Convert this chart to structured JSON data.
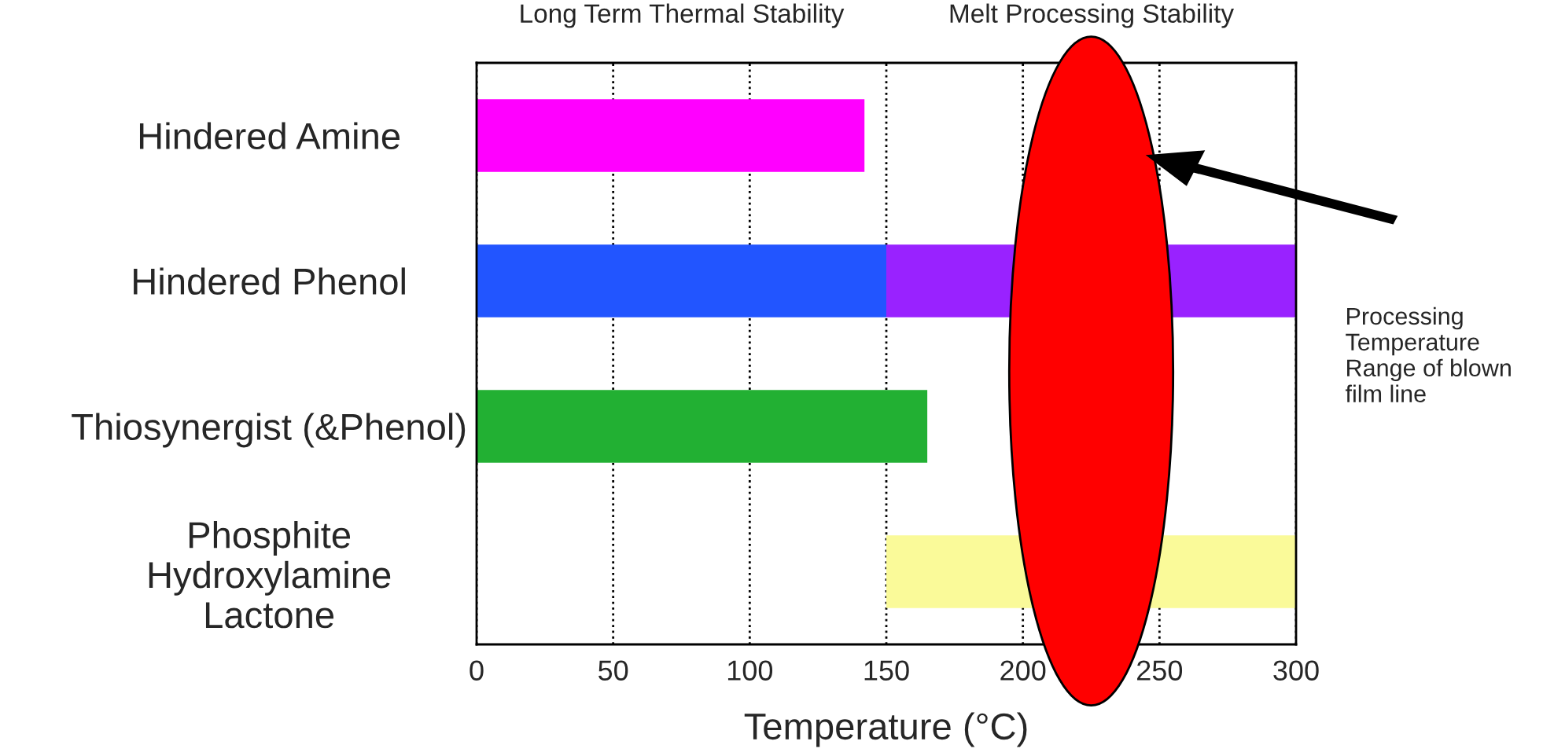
{
  "chart_data": {
    "type": "bar",
    "orientation": "horizontal",
    "xlabel": "Temperature (°C)",
    "categories": [
      "Hindered Amine",
      "Hindered Phenol",
      "Thiosynergist (&Phenol)",
      "Phosphite\nHydroxylamine\nLactone"
    ],
    "series": [
      {
        "colors": [
          "#ff00ff",
          "#2255ff",
          "#22b033",
          "#fafa99"
        ],
        "base": [
          0,
          0,
          0,
          150
        ],
        "values": [
          142,
          150,
          165,
          150
        ]
      },
      {
        "colors": [
          null,
          "#9922ff",
          null,
          null
        ],
        "base": [
          null,
          150,
          null,
          null
        ],
        "values": [
          null,
          150,
          null,
          null
        ]
      }
    ],
    "xlim": [
      0,
      300
    ],
    "xticks": [
      0,
      50,
      100,
      150,
      200,
      250,
      300
    ],
    "grid": "x",
    "line_style": "dotted",
    "annotations": [
      "Long Term Thermal Stability",
      "Melt Processing Stability",
      "Processing\nTemperature\nRange of blown\nfilm line"
    ]
  }
}
